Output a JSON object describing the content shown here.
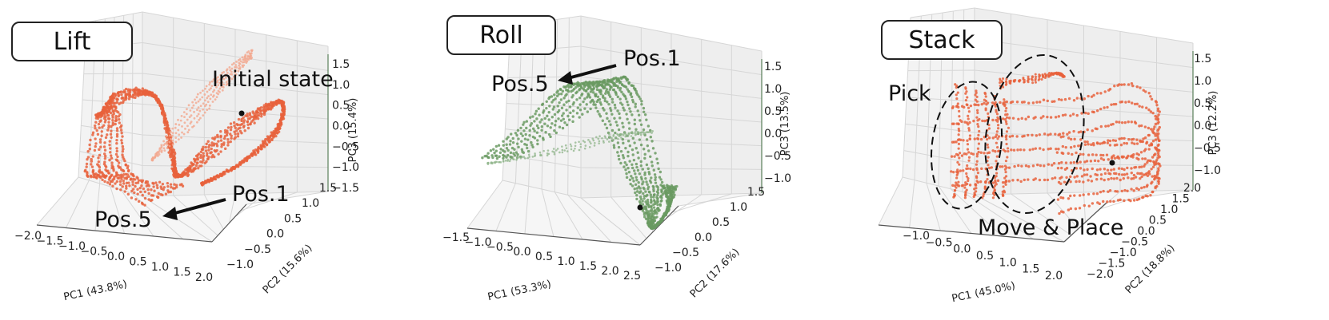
{
  "chart_data": [
    {
      "type": "scatter",
      "subtype": "3d",
      "panel_label": "Lift",
      "color": "#E8613C",
      "xlabel": "PC1 (43.8%)",
      "ylabel": "PC2 (15.6%)",
      "zlabel": "PC3 (15.4%)",
      "x_ticks": [
        "−2.0",
        "−1.5",
        "−1.0",
        "−0.5",
        "0.0",
        "0.5",
        "1.0",
        "1.5",
        "2.0"
      ],
      "y_ticks": [
        "−1.0",
        "−0.5",
        "0.0",
        "0.5",
        "1.0",
        "1.5"
      ],
      "z_ticks": [
        "1.5",
        "1.0",
        "0.5",
        "0.0",
        "−0.5",
        "−1.0",
        "−1.5"
      ],
      "xlim": [
        -2.0,
        2.0
      ],
      "ylim": [
        -1.0,
        1.5
      ],
      "zlim": [
        -1.5,
        1.5
      ],
      "annotations": [
        "Initial state",
        "Pos.1",
        "Pos.5"
      ],
      "grid": true
    },
    {
      "type": "scatter",
      "subtype": "3d",
      "panel_label": "Roll",
      "color": "#6A9A62",
      "xlabel": "PC1 (53.3%)",
      "ylabel": "PC2 (17.6%)",
      "zlabel": "PC3 (13.5%)",
      "x_ticks": [
        "−1.5",
        "−1.0",
        "−0.5",
        "0.0",
        "0.5",
        "1.0",
        "1.5",
        "2.0",
        "2.5"
      ],
      "y_ticks": [
        "−1.0",
        "−0.5",
        "0.0",
        "0.5",
        "1.0",
        "1.5"
      ],
      "z_ticks": [
        "1.5",
        "1.0",
        "0.5",
        "0.0",
        "−0.5",
        "−1.0"
      ],
      "xlim": [
        -1.5,
        2.5
      ],
      "ylim": [
        -1.0,
        1.5
      ],
      "zlim": [
        -1.0,
        1.5
      ],
      "annotations": [
        "Pos.1",
        "Pos.5"
      ],
      "grid": true
    },
    {
      "type": "scatter",
      "subtype": "3d",
      "panel_label": "Stack",
      "color": "#E8613C",
      "xlabel": "PC1 (45.0%)",
      "ylabel": "PC2 (18.8%)",
      "zlabel": "PC3 (12.2%)",
      "x_ticks": [
        "−1.0",
        "−0.5",
        "0.0",
        "0.5",
        "1.0",
        "1.5",
        "2.0"
      ],
      "y_ticks": [
        "−2.0",
        "−1.5",
        "−1.0",
        "−0.5",
        "0.0",
        "0.5",
        "1.0",
        "1.5",
        "2.0"
      ],
      "z_ticks": [
        "1.5",
        "1.0",
        "0.5",
        "0.0",
        "−0.5",
        "−1.0"
      ],
      "xlim": [
        -1.0,
        2.0
      ],
      "ylim": [
        -2.0,
        2.0
      ],
      "zlim": [
        -1.0,
        1.5
      ],
      "annotations": [
        "Pick",
        "Move & Place"
      ],
      "grid": true
    }
  ]
}
